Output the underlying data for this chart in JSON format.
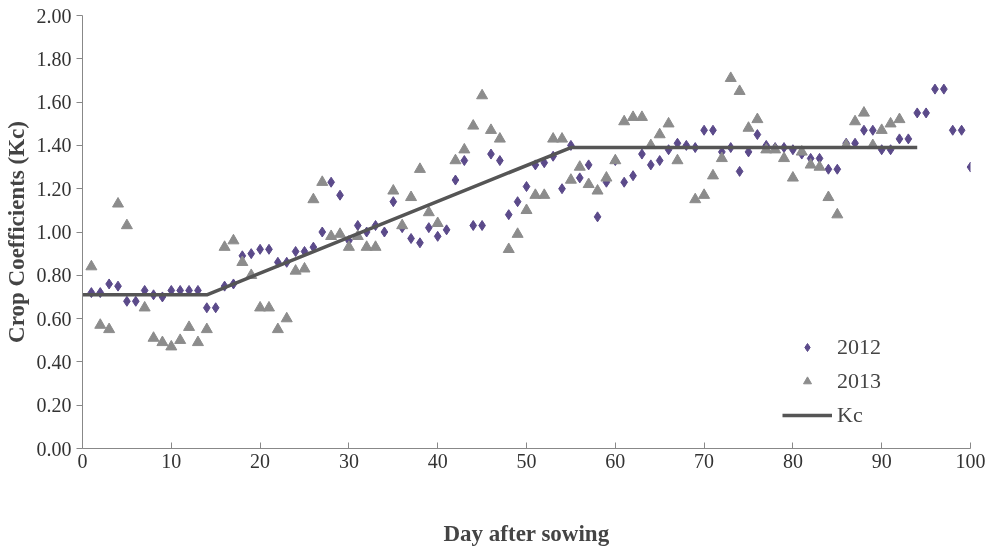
{
  "chart_data": {
    "type": "scatter",
    "xlabel": "Day after sowing",
    "ylabel": "Crop Coefficients (Kc)",
    "xlim": [
      0,
      100
    ],
    "ylim": [
      0,
      2
    ],
    "xticks": [
      0,
      10,
      20,
      30,
      40,
      50,
      60,
      70,
      80,
      90,
      100
    ],
    "yticks": [
      {
        "value": 0,
        "label": "0.00"
      },
      {
        "value": 0.2,
        "label": "0.20"
      },
      {
        "value": 0.4,
        "label": "0.40"
      },
      {
        "value": 0.6,
        "label": "0.60"
      },
      {
        "value": 0.8,
        "label": "0.80"
      },
      {
        "value": 1.0,
        "label": "1.00"
      },
      {
        "value": 1.2,
        "label": "1.20"
      },
      {
        "value": 1.4,
        "label": "1.40"
      },
      {
        "value": 1.6,
        "label": "1.60"
      },
      {
        "value": 1.8,
        "label": "1.80"
      },
      {
        "value": 2.0,
        "label": "2.00"
      }
    ],
    "grid": false,
    "legend": "right",
    "series": [
      {
        "name": "2012",
        "marker": "diamond",
        "color": "#5b4a8a",
        "x": [
          1,
          2,
          3,
          4,
          5,
          6,
          7,
          8,
          9,
          10,
          11,
          12,
          13,
          14,
          15,
          16,
          17,
          18,
          19,
          20,
          21,
          22,
          23,
          24,
          25,
          26,
          27,
          28,
          29,
          30,
          31,
          32,
          33,
          34,
          35,
          36,
          37,
          38,
          39,
          40,
          41,
          42,
          43,
          44,
          45,
          46,
          47,
          48,
          49,
          50,
          51,
          52,
          53,
          54,
          55,
          56,
          57,
          58,
          59,
          60,
          61,
          62,
          63,
          64,
          65,
          66,
          67,
          68,
          69,
          70,
          71,
          72,
          73,
          74,
          75,
          76,
          77,
          78,
          79,
          80,
          81,
          82,
          83,
          84,
          85,
          86,
          87,
          88,
          89,
          90,
          91,
          92,
          93,
          94,
          95,
          96,
          97,
          98,
          99,
          100
        ],
        "values": [
          0.72,
          0.72,
          0.76,
          0.75,
          0.68,
          0.68,
          0.73,
          0.71,
          0.7,
          0.73,
          0.73,
          0.73,
          0.73,
          0.65,
          0.65,
          0.75,
          0.76,
          0.89,
          0.9,
          0.92,
          0.92,
          0.86,
          0.86,
          0.91,
          0.91,
          0.93,
          1.0,
          1.23,
          1.17,
          0.96,
          1.03,
          1.0,
          1.03,
          1.0,
          1.14,
          1.02,
          0.97,
          0.95,
          1.02,
          0.98,
          1.01,
          1.24,
          1.33,
          1.03,
          1.03,
          1.36,
          1.33,
          1.08,
          1.14,
          1.21,
          1.31,
          1.32,
          1.35,
          1.2,
          1.4,
          1.25,
          1.31,
          1.07,
          1.23,
          1.33,
          1.23,
          1.26,
          1.36,
          1.31,
          1.33,
          1.38,
          1.41,
          1.4,
          1.39,
          1.47,
          1.47,
          1.37,
          1.39,
          1.28,
          1.37,
          1.45,
          1.4,
          1.39,
          1.39,
          1.38,
          1.36,
          1.34,
          1.34,
          1.29,
          1.29,
          1.41,
          1.41,
          1.47,
          1.47,
          1.38,
          1.38,
          1.43,
          1.43,
          1.55,
          1.55,
          1.66,
          1.66,
          1.47,
          1.47,
          1.3
        ]
      },
      {
        "name": "2013",
        "marker": "triangle",
        "color": "#8c8c8c",
        "x": [
          1,
          2,
          3,
          4,
          5,
          7,
          8,
          9,
          10,
          11,
          12,
          13,
          14,
          16,
          17,
          18,
          19,
          20,
          21,
          22,
          23,
          24,
          25,
          26,
          27,
          28,
          29,
          30,
          31,
          32,
          33,
          35,
          36,
          37,
          38,
          39,
          40,
          42,
          43,
          44,
          45,
          46,
          47,
          48,
          49,
          50,
          51,
          52,
          53,
          54,
          55,
          56,
          57,
          58,
          59,
          60,
          61,
          62,
          63,
          64,
          65,
          66,
          67,
          69,
          70,
          71,
          72,
          73,
          74,
          75,
          76,
          77,
          78,
          79,
          80,
          81,
          82,
          83,
          84,
          85,
          86,
          87,
          88,
          89,
          90,
          91,
          92
        ],
        "values": [
          0.84,
          0.57,
          0.55,
          1.13,
          1.03,
          0.65,
          0.51,
          0.49,
          0.47,
          0.5,
          0.56,
          0.49,
          0.55,
          0.93,
          0.96,
          0.86,
          0.8,
          0.65,
          0.65,
          0.55,
          0.6,
          0.82,
          0.83,
          1.15,
          1.23,
          0.98,
          0.99,
          0.93,
          0.98,
          0.93,
          0.93,
          1.19,
          1.03,
          1.16,
          1.29,
          1.09,
          1.04,
          1.33,
          1.38,
          1.49,
          1.63,
          1.47,
          1.43,
          0.92,
          0.99,
          1.1,
          1.17,
          1.17,
          1.43,
          1.43,
          1.24,
          1.3,
          1.22,
          1.19,
          1.25,
          1.33,
          1.51,
          1.53,
          1.53,
          1.4,
          1.45,
          1.5,
          1.33,
          1.15,
          1.17,
          1.26,
          1.34,
          1.71,
          1.65,
          1.48,
          1.52,
          1.38,
          1.38,
          1.34,
          1.25,
          1.37,
          1.31,
          1.3,
          1.16,
          1.08,
          1.4,
          1.51,
          1.55,
          1.4,
          1.47,
          1.5,
          1.52
        ]
      },
      {
        "name": "Kc",
        "type": "line",
        "marker": "none",
        "line_style": "solid",
        "color": "#555555",
        "x": [
          0,
          14,
          55,
          94
        ],
        "values": [
          0.71,
          0.71,
          1.39,
          1.39
        ]
      }
    ]
  }
}
